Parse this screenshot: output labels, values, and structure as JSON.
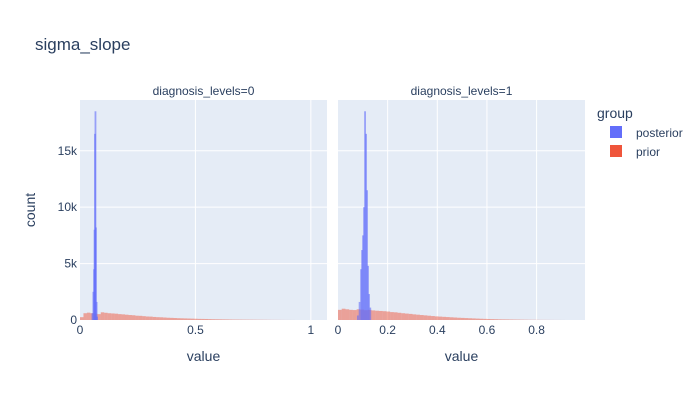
{
  "chart_data": {
    "type": "histogram",
    "title": "sigma_slope",
    "ylabel": "count",
    "legend": {
      "title": "group",
      "placement": "right",
      "entries": [
        {
          "name": "posterior",
          "color": "#636efa"
        },
        {
          "name": "prior",
          "color": "#ef553b"
        }
      ]
    },
    "bar_opacity": 0.5,
    "grid": true,
    "panels": [
      {
        "facet_label": "diagnosis_levels=0",
        "xlabel": "value",
        "xlim": [
          0,
          1.07
        ],
        "ylim": [
          0,
          19500
        ],
        "xticks": [
          {
            "value": 0,
            "label": "0"
          },
          {
            "value": 0.5,
            "label": "0.5"
          },
          {
            "value": 1,
            "label": "1"
          }
        ],
        "yticks": [
          {
            "value": 0,
            "label": "0"
          },
          {
            "value": 5000,
            "label": "5k"
          },
          {
            "value": 10000,
            "label": "10k"
          },
          {
            "value": 15000,
            "label": "15k"
          }
        ],
        "posterior": {
          "x": [
            0.054,
            0.058,
            0.061,
            0.063,
            0.065,
            0.067,
            0.069,
            0.072,
            0.074
          ],
          "counts": [
            600,
            2500,
            4500,
            8000,
            16500,
            18500,
            8200,
            1600,
            300
          ]
        },
        "prior": {
          "x_start": 0.0,
          "bin_width": 0.015,
          "counts": [
            250,
            600,
            650,
            600,
            560,
            520,
            680,
            640,
            600,
            580,
            560,
            520,
            500,
            470,
            440,
            420,
            380,
            370,
            340,
            310,
            300,
            270,
            250,
            240,
            220,
            200,
            190,
            175,
            160,
            150,
            140,
            130,
            120,
            110,
            100,
            95,
            90,
            80,
            70,
            65,
            60,
            55,
            50,
            45,
            40,
            38,
            35,
            32,
            30,
            28,
            25,
            22,
            20,
            18,
            15,
            12,
            10,
            8,
            6,
            4,
            3,
            2
          ]
        }
      },
      {
        "facet_label": "diagnosis_levels=1",
        "xlabel": "value",
        "xlim": [
          0,
          0.995
        ],
        "ylim": [
          0,
          19500
        ],
        "xticks": [
          {
            "value": 0,
            "label": "0"
          },
          {
            "value": 0.2,
            "label": "0.2"
          },
          {
            "value": 0.4,
            "label": "0.4"
          },
          {
            "value": 0.6,
            "label": "0.6"
          },
          {
            "value": 0.8,
            "label": "0.8"
          }
        ],
        "yticks": [
          {
            "value": 0,
            "label": "0"
          },
          {
            "value": 5000,
            "label": "5k"
          },
          {
            "value": 10000,
            "label": "10k"
          },
          {
            "value": 15000,
            "label": "15k"
          }
        ],
        "posterior": {
          "x": [
            0.08,
            0.087,
            0.093,
            0.097,
            0.101,
            0.105,
            0.109,
            0.113,
            0.117,
            0.121,
            0.125,
            0.13
          ],
          "counts": [
            400,
            1600,
            4500,
            6200,
            7500,
            10000,
            18500,
            16500,
            11500,
            4800,
            2300,
            1100
          ]
        },
        "prior": {
          "x_start": 0.0,
          "bin_width": 0.015,
          "counts": [
            900,
            1000,
            950,
            900,
            880,
            950,
            920,
            870,
            900,
            850,
            820,
            800,
            780,
            750,
            700,
            680,
            640,
            600,
            570,
            540,
            500,
            470,
            440,
            410,
            380,
            350,
            320,
            300,
            280,
            260,
            240,
            220,
            200,
            185,
            170,
            155,
            140,
            125,
            110,
            100,
            90,
            80,
            70,
            60,
            55,
            50,
            45,
            40,
            35,
            30,
            25,
            20,
            18,
            15,
            12,
            10,
            8,
            6,
            4,
            3,
            2
          ]
        }
      }
    ]
  }
}
